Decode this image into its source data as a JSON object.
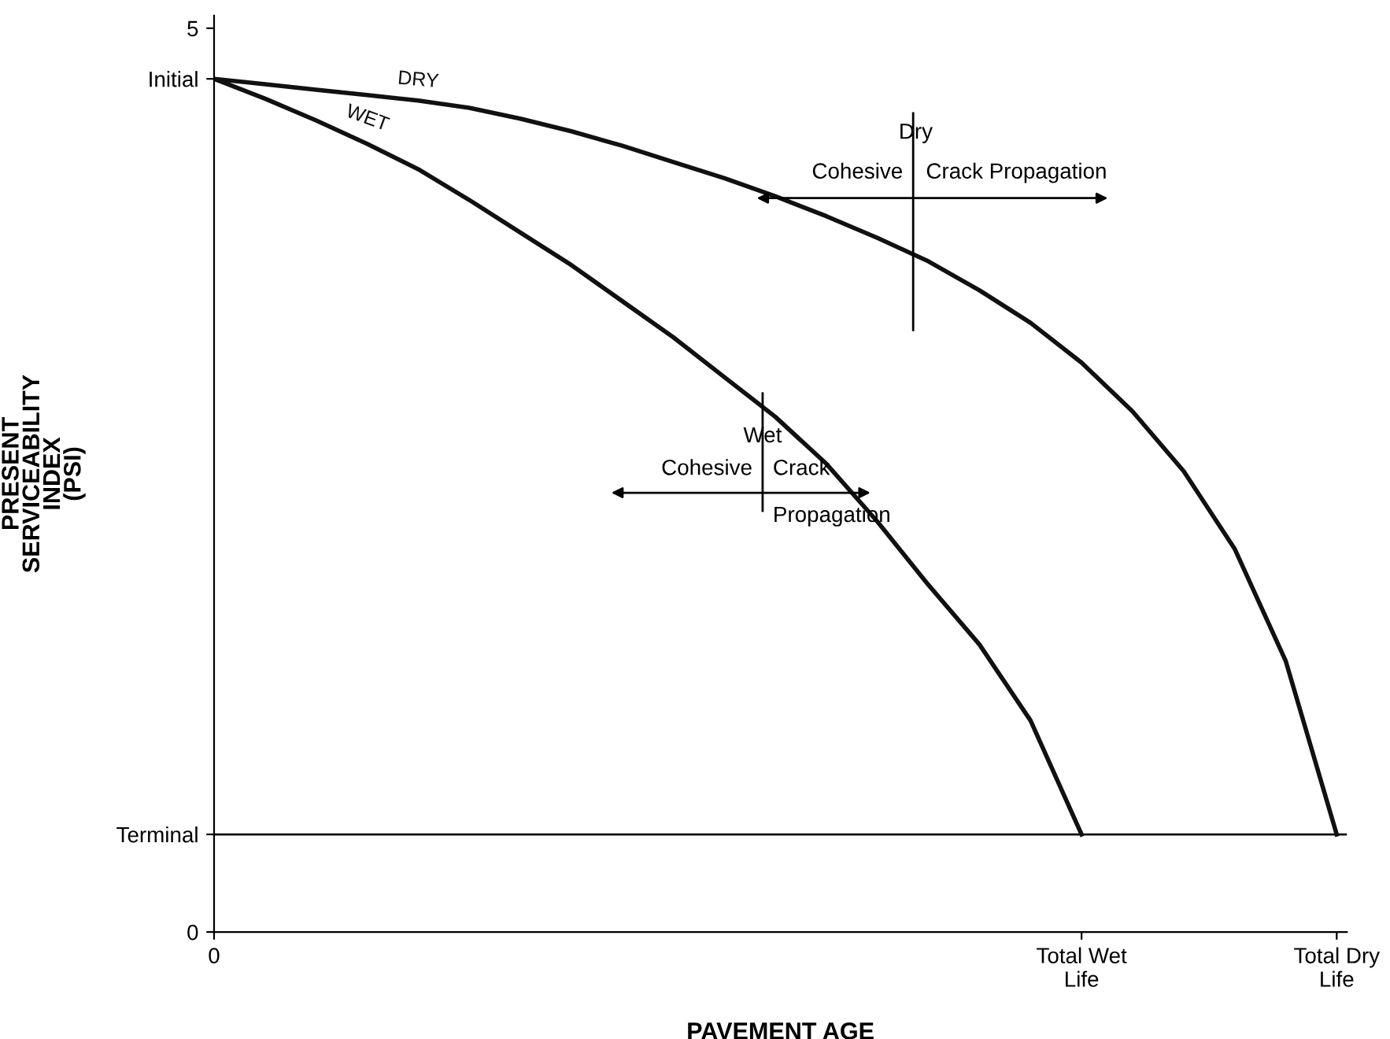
{
  "chart_data": {
    "type": "line",
    "xlabel": "PAVEMENT AGE",
    "ylabel": "PRESENT\nSERVICEABILITY\nINDEX\n(PSI)",
    "categories": [
      "0",
      null,
      null,
      null,
      null,
      null,
      null,
      null,
      null,
      null,
      null,
      null,
      null,
      null,
      null,
      null,
      null,
      "Total Wet\nLife",
      null,
      null,
      null,
      null,
      "Total Dry\nLife"
    ],
    "series": [
      {
        "name": "DRY",
        "color": "#111111",
        "values": [
          4.72,
          4.69,
          4.66,
          4.63,
          4.6,
          4.56,
          4.5,
          4.43,
          4.35,
          4.26,
          4.17,
          4.07,
          3.96,
          3.84,
          3.71,
          3.55,
          3.37,
          3.15,
          2.88,
          2.55,
          2.12,
          1.5,
          0.54
        ]
      },
      {
        "name": "WET",
        "color": "#111111",
        "values": [
          4.72,
          4.61,
          4.49,
          4.36,
          4.22,
          4.05,
          3.87,
          3.69,
          3.49,
          3.29,
          3.07,
          2.85,
          2.59,
          2.27,
          1.92,
          1.59,
          1.17,
          0.54,
          null,
          null,
          null,
          null,
          null
        ]
      }
    ],
    "ylim": [
      0,
      5.07
    ],
    "yticks": [
      0,
      {
        "value": 0.54,
        "label": "Terminal"
      },
      {
        "value": 4.72,
        "label": "Initial"
      },
      5
    ],
    "ref_lines": [
      {
        "axis": "y",
        "value": 0.54,
        "color": "#111111"
      }
    ],
    "annotations": [
      "Dry",
      "Cohesive",
      "Crack Propagation",
      "Wet",
      "Cohesive",
      "Crack",
      "Propagation"
    ],
    "grid": false,
    "legend": false,
    "marker": "none",
    "line_style": "solid"
  }
}
